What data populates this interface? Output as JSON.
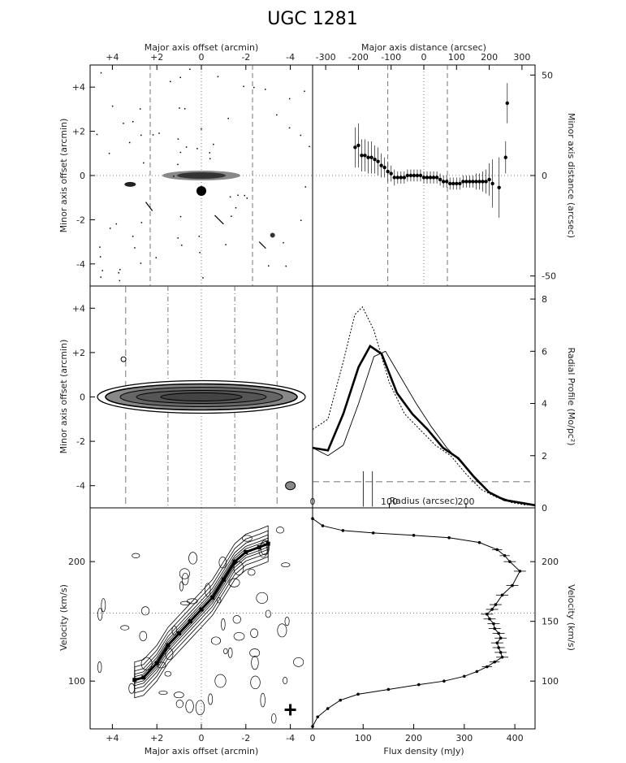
{
  "title": "UGC 1281",
  "chart_data": [
    {
      "id": "optical",
      "type": "image",
      "xlabel": "Major axis offset (arcmin)",
      "ylabel": "Minor axis offset (arcmin)",
      "xticks": [
        "+4",
        "+2",
        "0",
        "-2",
        "-4"
      ],
      "yticks": [
        "+4",
        "+2",
        "0",
        "-2",
        "-4"
      ],
      "xlim": [
        5,
        -5
      ],
      "ylim": [
        -5,
        5
      ],
      "grid": "dashed/dotted guide lines at major axis offsets +2.3, 0, -2.3",
      "description_marks": [
        "edge-on disk at centre",
        "bright star below disk",
        "scattered field stars"
      ]
    },
    {
      "id": "minor-axis-distance",
      "type": "scatter",
      "xlabel": "Major axis distance (arcsec)",
      "ylabel": "Minor axis distance (arcsec)",
      "xticks": [
        "-300",
        "-200",
        "-100",
        "0",
        "100",
        "200",
        "300"
      ],
      "yticks": [
        "50",
        "0",
        "-50"
      ],
      "xlim": [
        -340,
        340
      ],
      "ylim": [
        -55,
        55
      ],
      "x": [
        -210,
        -200,
        -190,
        -180,
        -170,
        -160,
        -150,
        -140,
        -130,
        -120,
        -110,
        -100,
        -90,
        -80,
        -70,
        -60,
        -50,
        -40,
        -30,
        -20,
        -10,
        0,
        10,
        20,
        30,
        40,
        50,
        60,
        70,
        80,
        90,
        100,
        110,
        120,
        130,
        140,
        150,
        160,
        170,
        180,
        190,
        200,
        210,
        230,
        250,
        255
      ],
      "y": [
        14,
        15,
        10,
        10,
        9,
        9,
        8,
        7,
        5,
        4,
        2,
        1,
        -1,
        -1,
        -1,
        -1,
        0,
        0,
        0,
        0,
        0,
        -1,
        -1,
        -1,
        -1,
        -1,
        -2,
        -3,
        -3,
        -4,
        -4,
        -4,
        -4,
        -3,
        -3,
        -3,
        -3,
        -3,
        -3,
        -3,
        -3,
        -2,
        -4,
        -6,
        9,
        36
      ],
      "yerr": [
        10,
        11,
        8,
        8,
        8,
        8,
        7,
        7,
        6,
        5,
        5,
        4,
        4,
        3,
        3,
        3,
        3,
        3,
        3,
        3,
        3,
        3,
        3,
        3,
        3,
        3,
        3,
        3,
        3,
        3,
        3,
        3,
        3,
        3,
        3,
        3,
        3,
        4,
        4,
        5,
        6,
        8,
        12,
        15,
        8,
        10
      ]
    },
    {
      "id": "hi-map",
      "type": "contour",
      "xlabel": "Major axis offset (arcmin)",
      "ylabel": "Minor axis offset (arcmin)",
      "yticks": [
        "+4",
        "+2",
        "0",
        "-2",
        "-4"
      ],
      "xlim": [
        5,
        -5
      ],
      "ylim": [
        -5,
        5
      ],
      "description_marks": [
        "elongated HI disk contours",
        "beam ellipse lower right"
      ]
    },
    {
      "id": "radial-profile",
      "type": "line",
      "xlabel": "Radius (arcsec)",
      "ylabel": "Radial Profile (Mo/pc²)",
      "xticks": [
        "0",
        "100",
        "200"
      ],
      "yticks": [
        "8",
        "6",
        "4",
        "2",
        "0"
      ],
      "xlim": [
        0,
        290
      ],
      "ylim": [
        0,
        8.5
      ],
      "series": [
        {
          "style": "thick",
          "x": [
            0,
            20,
            40,
            60,
            75,
            90,
            110,
            130,
            150,
            170,
            190,
            210,
            230,
            250,
            270,
            290
          ],
          "y": [
            2.3,
            2.2,
            3.6,
            5.4,
            6.2,
            5.9,
            4.4,
            3.6,
            3.0,
            2.3,
            1.9,
            1.2,
            0.6,
            0.3,
            0.2,
            0.1
          ]
        },
        {
          "style": "dotted",
          "x": [
            0,
            20,
            40,
            55,
            65,
            80,
            100,
            120,
            140,
            160,
            180,
            200,
            220,
            240,
            260,
            280
          ],
          "y": [
            3.0,
            3.4,
            5.6,
            7.4,
            7.7,
            6.8,
            4.8,
            3.6,
            3.0,
            2.4,
            2.0,
            1.3,
            0.7,
            0.4,
            0.2,
            0.1
          ]
        },
        {
          "style": "thin",
          "x": [
            0,
            20,
            40,
            60,
            80,
            95,
            115,
            135,
            155,
            175,
            195,
            215,
            235,
            255,
            275,
            290
          ],
          "y": [
            2.3,
            2.0,
            2.4,
            4.0,
            5.8,
            6.0,
            5.0,
            4.0,
            3.1,
            2.3,
            1.7,
            1.0,
            0.5,
            0.3,
            0.2,
            0.1
          ]
        }
      ],
      "hline": 1.0
    },
    {
      "id": "position-velocity",
      "type": "contour",
      "xlabel": "Major axis offset (arcmin)",
      "ylabel": "Velocity (km/s)",
      "xticks": [
        "+4",
        "+2",
        "0",
        "-2",
        "-4"
      ],
      "yticks": [
        "200",
        "100"
      ],
      "xlim": [
        5,
        -5
      ],
      "ylim": [
        60,
        245
      ],
      "rotation_curve": {
        "x": [
          3.0,
          2.6,
          2.0,
          1.5,
          1.0,
          0.5,
          0.0,
          -0.5,
          -1.0,
          -1.5,
          -2.0,
          -2.6,
          -3.0
        ],
        "y": [
          101,
          103,
          115,
          130,
          140,
          150,
          160,
          170,
          185,
          200,
          208,
          212,
          215
        ]
      }
    },
    {
      "id": "global-profile",
      "type": "line",
      "xlabel": "Flux density (mJy)",
      "ylabel": "Velocity (km/s)",
      "xticks": [
        "0",
        "100",
        "200",
        "300",
        "400"
      ],
      "yticks": [
        "200",
        "150",
        "100"
      ],
      "xlim": [
        0,
        440
      ],
      "ylim": [
        60,
        245
      ],
      "x": [
        0,
        10,
        30,
        55,
        90,
        150,
        210,
        260,
        300,
        325,
        345,
        360,
        375,
        372,
        368,
        365,
        372,
        368,
        360,
        358,
        350,
        345,
        355,
        362,
        375,
        395,
        410,
        390,
        380,
        365,
        330,
        270,
        200,
        120,
        60,
        20,
        0
      ],
      "y": [
        62,
        70,
        77,
        84,
        89,
        93,
        97,
        100,
        104,
        108,
        112,
        116,
        120,
        124,
        128,
        132,
        136,
        140,
        144,
        148,
        152,
        156,
        160,
        164,
        172,
        180,
        192,
        200,
        205,
        210,
        216,
        220,
        222,
        224,
        226,
        230,
        236
      ],
      "xerr": [
        0,
        0,
        0,
        0,
        0,
        0,
        0,
        0,
        0,
        0,
        10,
        10,
        12,
        12,
        12,
        12,
        12,
        12,
        12,
        12,
        12,
        12,
        12,
        12,
        12,
        12,
        12,
        12,
        10,
        10,
        0,
        0,
        0,
        0,
        0,
        0,
        0
      ]
    }
  ]
}
